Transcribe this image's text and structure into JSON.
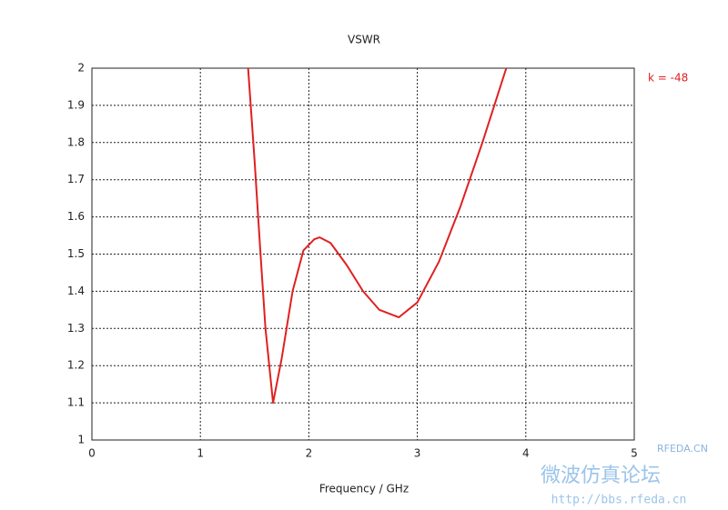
{
  "chart_data": {
    "type": "line",
    "title": "VSWR",
    "x_label": "Frequency / GHz",
    "annotation": "k = -48",
    "watermark": [
      "RFEDA.CN",
      "微波仿真论坛",
      "http://bbs.rfeda.cn"
    ],
    "series": [
      {
        "name": "VSWR",
        "color": "#e02020",
        "x": [
          1.44,
          1.5,
          1.55,
          1.6,
          1.67,
          1.75,
          1.85,
          1.95,
          2.05,
          2.1,
          2.2,
          2.35,
          2.5,
          2.65,
          2.83,
          3.0,
          3.2,
          3.4,
          3.6,
          3.82
        ],
        "values": [
          2.0,
          1.75,
          1.52,
          1.3,
          1.1,
          1.22,
          1.4,
          1.51,
          1.54,
          1.545,
          1.53,
          1.47,
          1.4,
          1.35,
          1.33,
          1.37,
          1.48,
          1.63,
          1.8,
          2.0
        ]
      }
    ],
    "xlim": [
      0,
      5
    ],
    "xticks": [
      0,
      1,
      2,
      3,
      4,
      5
    ],
    "ylim": [
      1,
      2
    ],
    "yticks": [
      1,
      1.1,
      1.2,
      1.3,
      1.4,
      1.5,
      1.6,
      1.7,
      1.8,
      1.9,
      2
    ],
    "grid": true
  }
}
